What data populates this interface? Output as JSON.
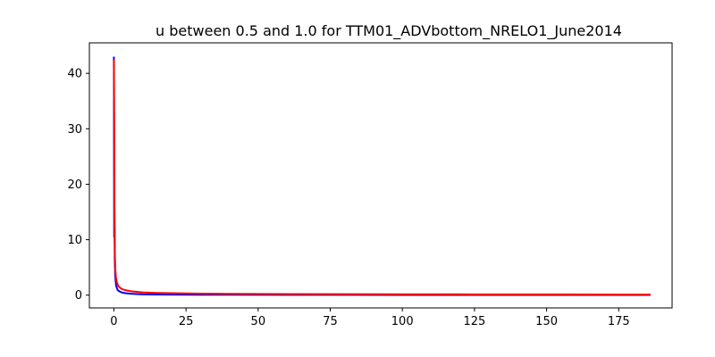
{
  "chart_data": {
    "type": "line",
    "title": "u between 0.5 and 1.0  for TTM01_ADVbottom_NRELO1_June2014",
    "xlabel": "",
    "ylabel": "",
    "xlim": [
      -8.5,
      193.5
    ],
    "ylim": [
      -2.3,
      45.5
    ],
    "xticks": [
      0,
      25,
      50,
      75,
      100,
      125,
      150,
      175
    ],
    "yticks": [
      0,
      10,
      20,
      30,
      40
    ],
    "grid": false,
    "legend": "none",
    "series": [
      {
        "color": "#0000ff",
        "x": [
          0,
          0.1,
          0.2,
          0.3,
          0.45,
          0.6,
          0.8,
          1.0,
          1.3,
          1.7,
          2.2,
          3,
          4,
          6,
          8,
          10,
          15,
          20,
          30,
          40,
          60,
          80,
          100,
          125,
          150,
          175,
          186
        ],
        "y": [
          43,
          10.5,
          15.5,
          6.5,
          3.5,
          2.6,
          1.6,
          1.4,
          0.9,
          0.75,
          0.6,
          0.45,
          0.35,
          0.25,
          0.2,
          0.15,
          0.12,
          0.1,
          0.08,
          0.07,
          0.05,
          0.05,
          0.04,
          0.04,
          0.03,
          0.03,
          0.03
        ]
      },
      {
        "color": "#ff0000",
        "x": [
          0,
          0.1,
          0.2,
          0.35,
          0.5,
          0.7,
          1.0,
          1.3,
          1.7,
          2.2,
          3,
          4,
          6,
          8,
          10,
          15,
          20,
          30,
          40,
          60,
          80,
          100,
          125,
          150,
          175,
          186
        ],
        "y": [
          42.5,
          32,
          15,
          7,
          4.6,
          3.2,
          2.4,
          1.9,
          1.55,
          1.3,
          1.05,
          0.9,
          0.7,
          0.6,
          0.5,
          0.4,
          0.35,
          0.28,
          0.24,
          0.2,
          0.18,
          0.16,
          0.14,
          0.13,
          0.12,
          0.11
        ]
      }
    ]
  }
}
